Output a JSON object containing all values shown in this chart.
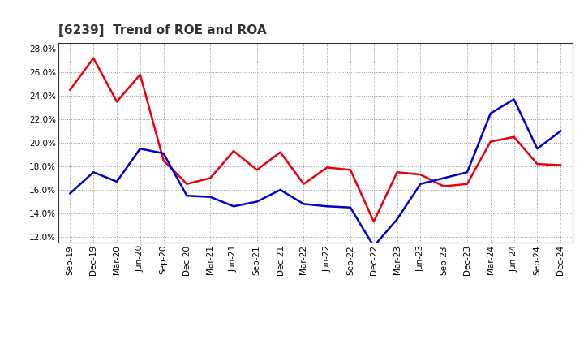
{
  "title": "[6239]  Trend of ROE and ROA",
  "labels": [
    "Sep-19",
    "Dec-19",
    "Mar-20",
    "Jun-20",
    "Sep-20",
    "Dec-20",
    "Mar-21",
    "Jun-21",
    "Sep-21",
    "Dec-21",
    "Mar-22",
    "Jun-22",
    "Sep-22",
    "Dec-22",
    "Mar-23",
    "Jun-23",
    "Sep-23",
    "Dec-23",
    "Mar-24",
    "Jun-24",
    "Sep-24",
    "Dec-24"
  ],
  "ROE": [
    24.5,
    27.2,
    23.5,
    25.8,
    18.5,
    16.5,
    17.0,
    19.3,
    17.7,
    19.2,
    16.5,
    17.9,
    17.7,
    13.3,
    17.5,
    17.3,
    16.3,
    16.5,
    20.1,
    20.5,
    18.2,
    18.1
  ],
  "ROA": [
    15.7,
    17.5,
    16.7,
    19.5,
    19.1,
    15.5,
    15.4,
    14.6,
    15.0,
    16.0,
    14.8,
    14.6,
    14.5,
    11.2,
    13.5,
    16.5,
    17.0,
    17.5,
    22.5,
    23.7,
    19.5,
    21.0
  ],
  "ROE_color": "#e8000d",
  "ROA_color": "#0000cc",
  "background_color": "#ffffff",
  "plot_background": "#ffffff",
  "grid_color": "#999999",
  "ylim": [
    11.5,
    28.5
  ],
  "yticks": [
    12.0,
    14.0,
    16.0,
    18.0,
    20.0,
    22.0,
    24.0,
    26.0,
    28.0
  ],
  "title_fontsize": 11,
  "legend_fontsize": 9,
  "tick_fontsize": 7.5,
  "line_width": 1.8
}
